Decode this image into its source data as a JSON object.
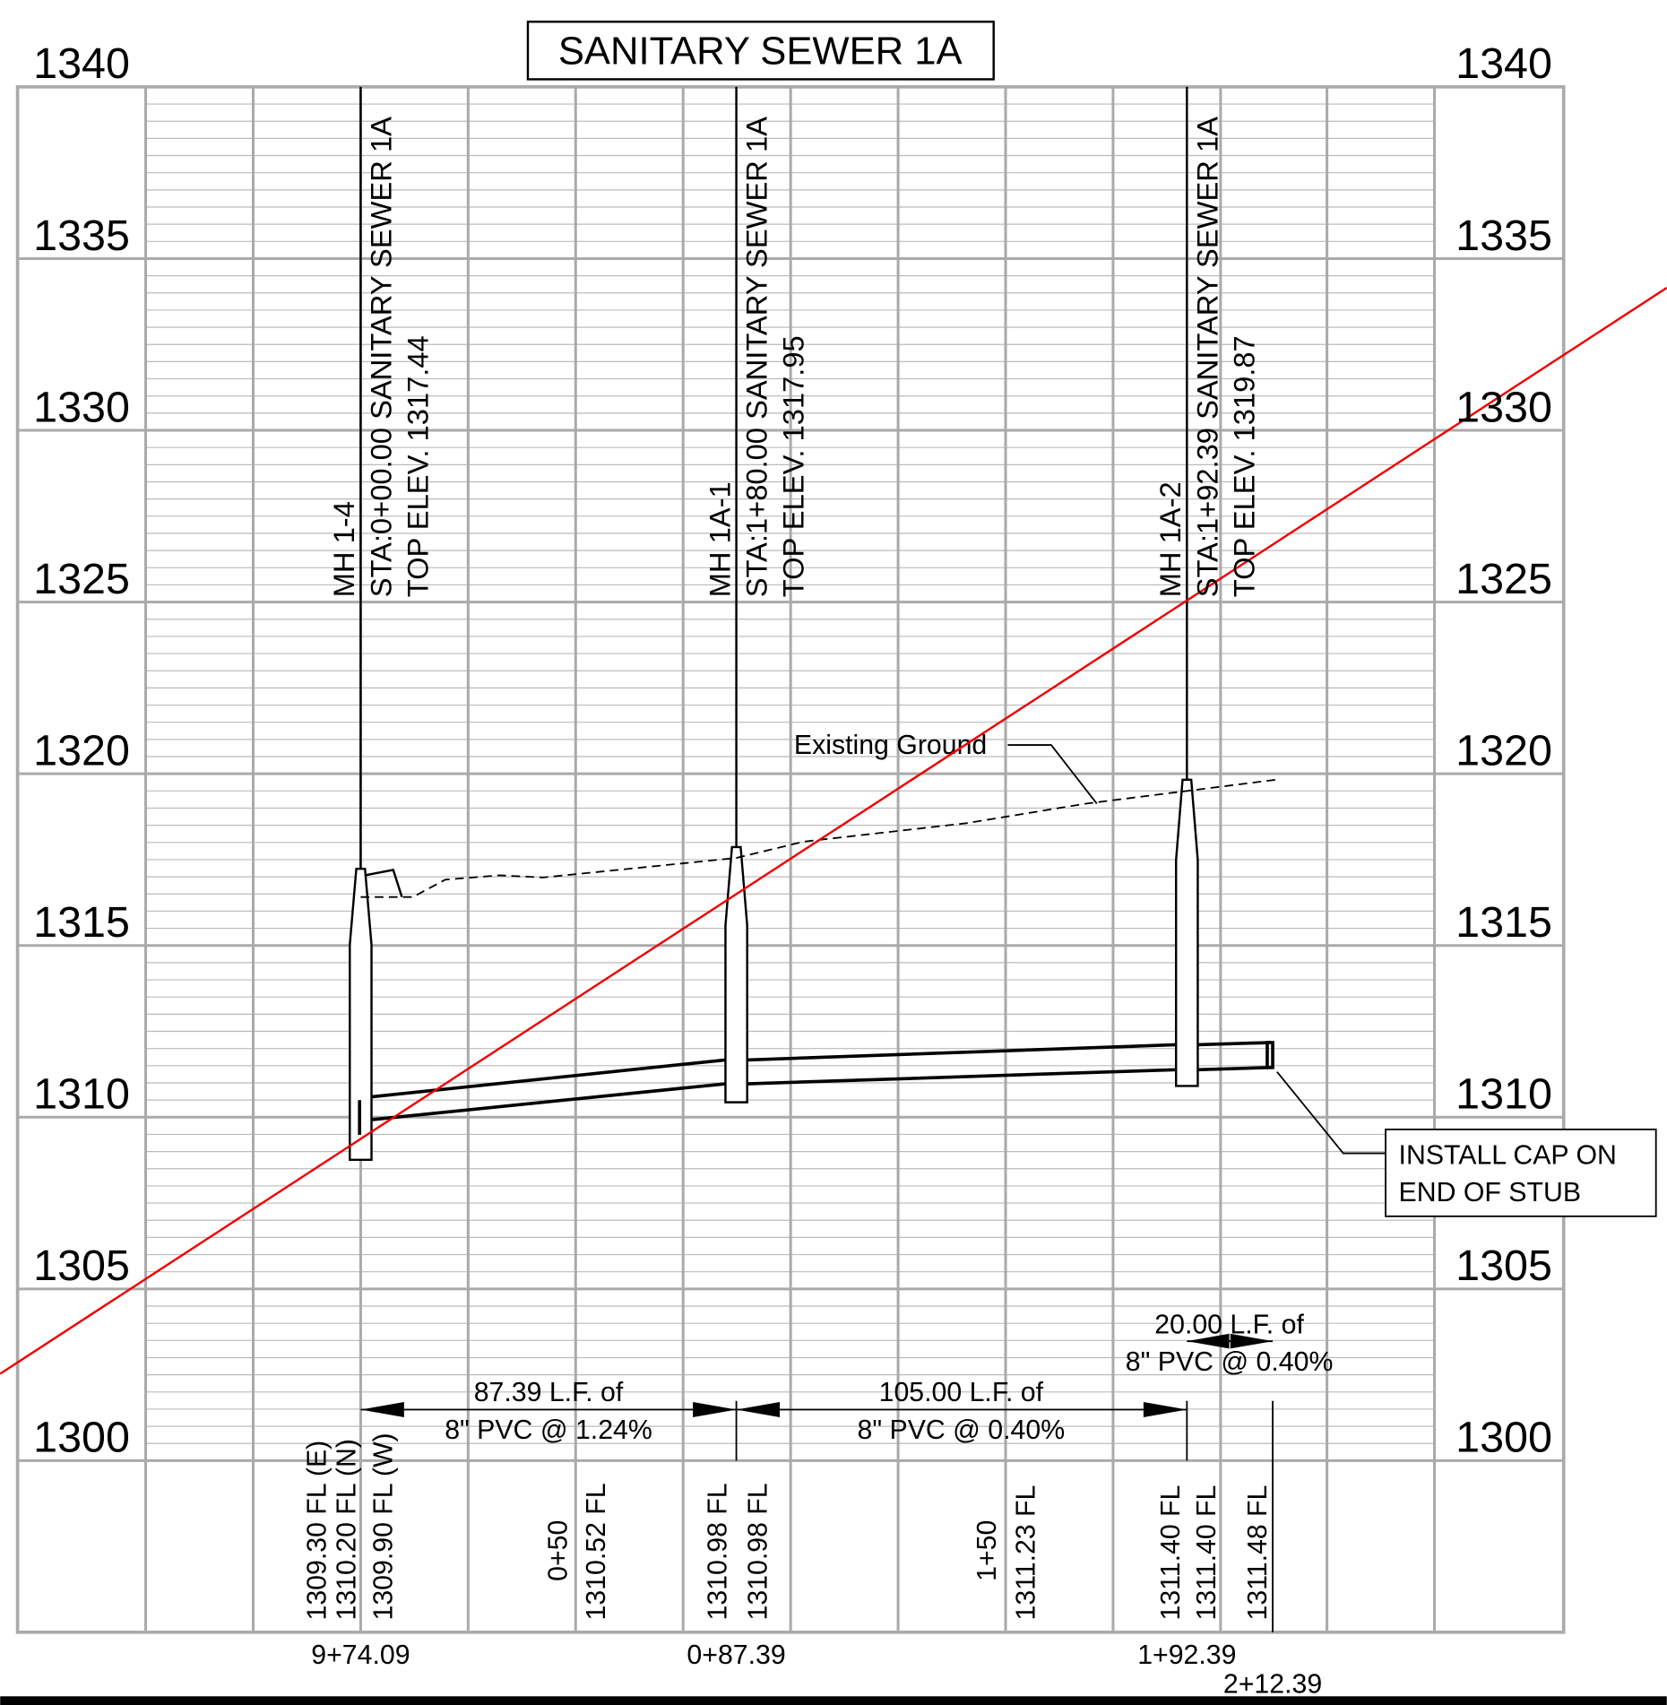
{
  "title": "SANITARY SEWER 1A",
  "elevations": [
    1340,
    1335,
    1330,
    1325,
    1320,
    1315,
    1310,
    1305,
    1300
  ],
  "manholes": [
    {
      "name": "MH 1-4",
      "station": "STA:0+00.00 SANITARY SEWER 1A",
      "top": "TOP ELEV. 1317.44"
    },
    {
      "name": "MH 1A-1",
      "station": "STA:1+80.00 SANITARY SEWER 1A",
      "top": "TOP ELEV. 1317.95"
    },
    {
      "name": "MH 1A-2",
      "station": "STA:1+92.39 SANITARY SEWER 1A",
      "top": "TOP ELEV. 1319.87"
    }
  ],
  "flowlines": [
    "1309.30 FL (E)",
    "1310.20 FL (N)",
    "1309.90 FL (W)",
    "0+50",
    "1310.52 FL",
    "1310.98 FL",
    "1310.98 FL",
    "1+50",
    "1311.23 FL",
    "1311.40 FL",
    "1311.40 FL",
    "1311.48 FL"
  ],
  "stations": [
    "9+74.09",
    "0+87.39",
    "1+92.39",
    "2+12.39"
  ],
  "pipes": [
    {
      "length": "87.39 L.F. of",
      "spec": "8\" PVC @ 1.24%"
    },
    {
      "length": "105.00 L.F. of",
      "spec": "8\" PVC @ 0.40%"
    },
    {
      "length": "20.00 L.F. of",
      "spec": "8\" PVC @ 0.40%"
    }
  ],
  "ground_label": "Existing Ground",
  "note": [
    "INSTALL CAP ON",
    "END OF STUB"
  ]
}
